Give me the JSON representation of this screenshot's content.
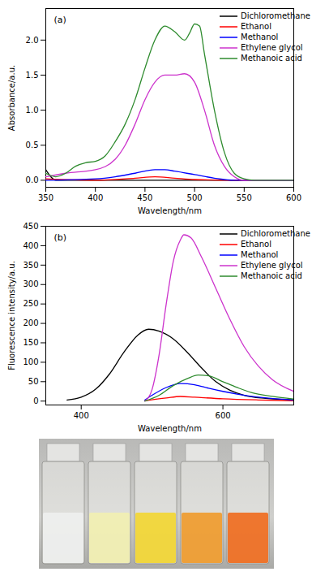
{
  "chart_data": [
    {
      "type": "line",
      "annotation": "(a)",
      "x_label": "Wavelength/nm",
      "y_label": "Absorbance/a.u.",
      "xlim": [
        350,
        600
      ],
      "xticks": [
        350,
        400,
        450,
        500,
        550,
        600
      ],
      "ylim": [
        -0.1,
        2.45
      ],
      "yticks": [
        {
          "value": 0,
          "label": "0.0"
        },
        {
          "value": 0.5,
          "label": "0.5"
        },
        {
          "value": 1,
          "label": "1.0"
        },
        {
          "value": 1.5,
          "label": "1.5"
        },
        {
          "value": 2,
          "label": "2.0"
        }
      ],
      "grid": false,
      "legend": "top-right",
      "series": [
        {
          "name": "Dichloromethane",
          "color": "#000000",
          "x": [
            350,
            355,
            360,
            400,
            450,
            500,
            550,
            600
          ],
          "values": [
            0.15,
            0.05,
            0.0,
            0.0,
            0.0,
            0.0,
            0.0,
            0.0
          ]
        },
        {
          "name": "Ethanol",
          "color": "#ff0000",
          "x": [
            350,
            400,
            440,
            460,
            480,
            500,
            550,
            600
          ],
          "values": [
            0.02,
            0.0,
            0.03,
            0.05,
            0.03,
            0.01,
            0.0,
            0.0
          ]
        },
        {
          "name": "Methanol",
          "color": "#0000ff",
          "x": [
            350,
            400,
            420,
            440,
            460,
            470,
            480,
            500,
            520,
            540,
            600
          ],
          "values": [
            0.0,
            0.02,
            0.05,
            0.1,
            0.15,
            0.15,
            0.13,
            0.08,
            0.03,
            0.0,
            0.0
          ]
        },
        {
          "name": "Ethylene glycol",
          "color": "#cc33cc",
          "x": [
            350,
            370,
            400,
            420,
            430,
            440,
            450,
            460,
            470,
            480,
            490,
            500,
            510,
            520,
            530,
            540,
            550,
            600
          ],
          "values": [
            0.05,
            0.1,
            0.15,
            0.3,
            0.5,
            0.8,
            1.15,
            1.4,
            1.5,
            1.5,
            1.52,
            1.4,
            1.0,
            0.5,
            0.2,
            0.05,
            0.0,
            0.0
          ]
        },
        {
          "name": "Methanoic acid",
          "color": "#2e8b2e",
          "x": [
            350,
            360,
            370,
            380,
            390,
            400,
            410,
            420,
            430,
            440,
            450,
            460,
            470,
            480,
            490,
            495,
            500,
            505,
            510,
            520,
            530,
            540,
            550,
            560,
            600
          ],
          "values": [
            0.1,
            0.05,
            0.1,
            0.2,
            0.25,
            0.27,
            0.35,
            0.55,
            0.8,
            1.15,
            1.6,
            2.0,
            2.2,
            2.12,
            2.0,
            2.1,
            2.23,
            2.2,
            1.8,
            1.0,
            0.4,
            0.1,
            0.02,
            0.0,
            0.0
          ]
        }
      ]
    },
    {
      "type": "line",
      "annotation": "(b)",
      "x_label": "Wavelength/nm",
      "y_label": "Fluorescence intensity/a.u.",
      "xlim": [
        350,
        700
      ],
      "xticks": [
        400,
        600
      ],
      "ylim": [
        -10,
        450
      ],
      "yticks": [
        0,
        50,
        100,
        150,
        200,
        250,
        300,
        350,
        400,
        450
      ],
      "grid": false,
      "legend": "top-right",
      "series": [
        {
          "name": "Dichloromethane",
          "color": "#000000",
          "x": [
            380,
            400,
            420,
            440,
            460,
            480,
            495,
            510,
            530,
            550,
            570,
            590,
            610,
            630,
            660,
            700
          ],
          "values": [
            3,
            10,
            30,
            70,
            125,
            170,
            185,
            180,
            160,
            125,
            85,
            50,
            28,
            15,
            7,
            3
          ]
        },
        {
          "name": "Ethanol",
          "color": "#ff0000",
          "x": [
            490,
            520,
            540,
            560,
            600,
            650,
            700
          ],
          "values": [
            1,
            8,
            12,
            10,
            6,
            3,
            1
          ]
        },
        {
          "name": "Methanol",
          "color": "#0000ff",
          "x": [
            490,
            500,
            520,
            540,
            560,
            580,
            600,
            620,
            650,
            700
          ],
          "values": [
            3,
            15,
            35,
            45,
            42,
            33,
            25,
            18,
            10,
            3
          ]
        },
        {
          "name": "Ethylene glycol",
          "color": "#cc33cc",
          "x": [
            490,
            500,
            510,
            520,
            530,
            540,
            545,
            555,
            570,
            590,
            610,
            630,
            650,
            670,
            700
          ],
          "values": [
            0,
            30,
            120,
            250,
            360,
            415,
            428,
            420,
            370,
            290,
            210,
            140,
            90,
            55,
            25
          ]
        },
        {
          "name": "Methanoic acid",
          "color": "#2e8b2e",
          "x": [
            490,
            510,
            530,
            550,
            565,
            580,
            600,
            620,
            640,
            670,
            700
          ],
          "values": [
            0,
            15,
            40,
            58,
            67,
            65,
            50,
            35,
            22,
            12,
            5
          ]
        }
      ]
    }
  ]
}
